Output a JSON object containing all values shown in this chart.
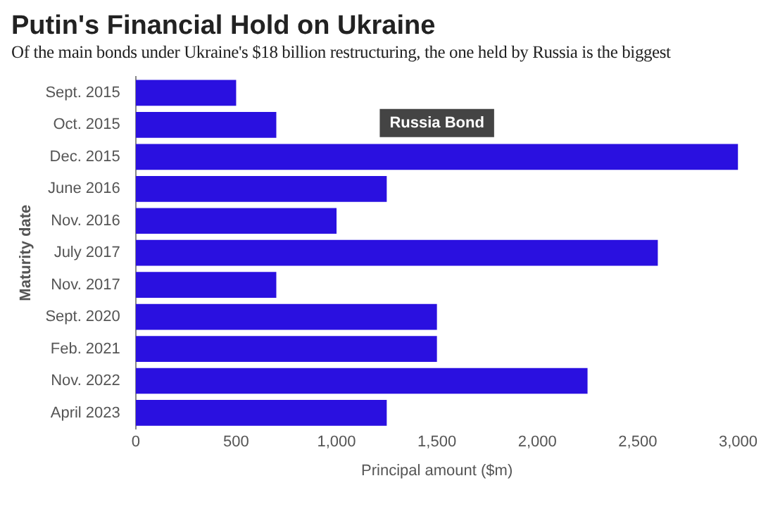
{
  "chart_data": {
    "type": "bar",
    "orientation": "horizontal",
    "title": "Putin's Financial Hold on Ukraine",
    "subtitle": "Of the main bonds under Ukraine's $18 billion restructuring, the one held by Russia is the biggest",
    "xlabel": "Principal amount ($m)",
    "ylabel": "Maturity date",
    "categories": [
      "Sept. 2015",
      "Oct. 2015",
      "Dec. 2015",
      "June 2016",
      "Nov. 2016",
      "July 2017",
      "Nov. 2017",
      "Sept. 2020",
      "Feb. 2021",
      "Nov. 2022",
      "April 2023"
    ],
    "values": [
      500,
      700,
      3000,
      1250,
      1000,
      2600,
      700,
      1500,
      1500,
      2250,
      1250
    ],
    "color": "#2a10e0",
    "xlim": [
      0,
      3000
    ],
    "xticks": [
      0,
      {
        "value": 500,
        "label": "500"
      },
      {
        "value": 1000,
        "label": "1,000"
      },
      {
        "value": 1500,
        "label": "1,500"
      },
      {
        "value": 2000,
        "label": "2,000"
      },
      {
        "value": 2500,
        "label": "2,500"
      },
      {
        "value": 3000,
        "label": "3,000"
      }
    ],
    "grid": false,
    "legend": false,
    "annotations": [
      {
        "text": "Russia Bond",
        "x": 1500,
        "y": "Dec. 2015"
      }
    ]
  }
}
